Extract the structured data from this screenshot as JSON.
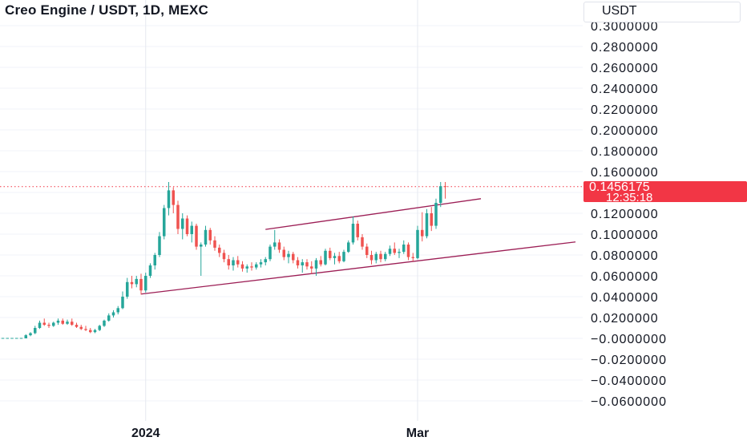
{
  "header": {
    "title": "Creo Engine / USDT, 1D, MEXC",
    "currency": "USDT"
  },
  "price_tag": {
    "price": "0.1456175",
    "countdown": "12:35:18"
  },
  "colors": {
    "up": "#26a69a",
    "down": "#ef5350",
    "trendline": "#9c1e55",
    "price_line": "#f23645",
    "grid": "#f0f3fa",
    "axis_text": "#131722"
  },
  "chart_data": {
    "type": "candlestick",
    "title": "Creo Engine / USDT, 1D, MEXC",
    "ylabel": "USDT",
    "ylim": [
      -0.07,
      0.31
    ],
    "y_ticks": [
      "0.3000000",
      "0.2800000",
      "0.2600000",
      "0.2400000",
      "0.2200000",
      "0.2000000",
      "0.1800000",
      "0.1600000",
      "0.1200000",
      "0.1000000",
      "0.0800000",
      "0.0600000",
      "0.0400000",
      "0.0200000",
      "−0.0000000",
      "−0.0200000",
      "−0.0400000",
      "−0.0600000"
    ],
    "y_tick_values": [
      0.3,
      0.28,
      0.26,
      0.24,
      0.22,
      0.2,
      0.18,
      0.16,
      0.12,
      0.1,
      0.08,
      0.06,
      0.04,
      0.02,
      0.0,
      -0.02,
      -0.04,
      -0.06
    ],
    "x_labels": [
      {
        "label": "2024",
        "bar": 31
      },
      {
        "label": "Mar",
        "bar": 90
      }
    ],
    "last_price": 0.1456175,
    "grid": true,
    "candles": [
      [
        0.0,
        0.0,
        0.0,
        0.0
      ],
      [
        0.0,
        0.0,
        0.0,
        0.0
      ],
      [
        0.0,
        0.0,
        0.0,
        0.0
      ],
      [
        0.0,
        0.0,
        0.0,
        0.0
      ],
      [
        0.0,
        0.0,
        0.0,
        0.0
      ],
      [
        0.0,
        0.004,
        0.0,
        0.003
      ],
      [
        0.003,
        0.006,
        0.002,
        0.005
      ],
      [
        0.005,
        0.012,
        0.004,
        0.01
      ],
      [
        0.01,
        0.017,
        0.009,
        0.015
      ],
      [
        0.015,
        0.019,
        0.012,
        0.013
      ],
      [
        0.013,
        0.015,
        0.01,
        0.012
      ],
      [
        0.012,
        0.016,
        0.011,
        0.015
      ],
      [
        0.015,
        0.019,
        0.013,
        0.017
      ],
      [
        0.017,
        0.019,
        0.013,
        0.014
      ],
      [
        0.014,
        0.018,
        0.013,
        0.016
      ],
      [
        0.016,
        0.019,
        0.012,
        0.013
      ],
      [
        0.013,
        0.015,
        0.01,
        0.011
      ],
      [
        0.011,
        0.013,
        0.008,
        0.009
      ],
      [
        0.009,
        0.012,
        0.007,
        0.008
      ],
      [
        0.008,
        0.01,
        0.005,
        0.006
      ],
      [
        0.006,
        0.009,
        0.005,
        0.008
      ],
      [
        0.008,
        0.013,
        0.007,
        0.012
      ],
      [
        0.012,
        0.018,
        0.011,
        0.017
      ],
      [
        0.017,
        0.024,
        0.016,
        0.022
      ],
      [
        0.022,
        0.027,
        0.02,
        0.025
      ],
      [
        0.025,
        0.031,
        0.023,
        0.029
      ],
      [
        0.029,
        0.045,
        0.028,
        0.04
      ],
      [
        0.04,
        0.058,
        0.038,
        0.054
      ],
      [
        0.054,
        0.06,
        0.048,
        0.052
      ],
      [
        0.052,
        0.06,
        0.049,
        0.057
      ],
      [
        0.057,
        0.062,
        0.042,
        0.046
      ],
      [
        0.046,
        0.063,
        0.044,
        0.06
      ],
      [
        0.06,
        0.072,
        0.058,
        0.07
      ],
      [
        0.07,
        0.082,
        0.066,
        0.08
      ],
      [
        0.08,
        0.102,
        0.078,
        0.098
      ],
      [
        0.098,
        0.128,
        0.095,
        0.125
      ],
      [
        0.125,
        0.15,
        0.118,
        0.142
      ],
      [
        0.142,
        0.145,
        0.12,
        0.128
      ],
      [
        0.128,
        0.132,
        0.1,
        0.105
      ],
      [
        0.105,
        0.12,
        0.095,
        0.115
      ],
      [
        0.115,
        0.118,
        0.098,
        0.1
      ],
      [
        0.1,
        0.112,
        0.092,
        0.108
      ],
      [
        0.108,
        0.11,
        0.085,
        0.088
      ],
      [
        0.088,
        0.092,
        0.06,
        0.09
      ],
      [
        0.09,
        0.108,
        0.088,
        0.104
      ],
      [
        0.104,
        0.106,
        0.09,
        0.094
      ],
      [
        0.094,
        0.098,
        0.084,
        0.087
      ],
      [
        0.087,
        0.09,
        0.078,
        0.082
      ],
      [
        0.082,
        0.085,
        0.073,
        0.076
      ],
      [
        0.076,
        0.08,
        0.066,
        0.07
      ],
      [
        0.07,
        0.078,
        0.065,
        0.075
      ],
      [
        0.075,
        0.079,
        0.068,
        0.071
      ],
      [
        0.071,
        0.074,
        0.064,
        0.067
      ],
      [
        0.067,
        0.071,
        0.063,
        0.069
      ],
      [
        0.069,
        0.073,
        0.065,
        0.068
      ],
      [
        0.068,
        0.073,
        0.066,
        0.071
      ],
      [
        0.071,
        0.076,
        0.068,
        0.073
      ],
      [
        0.073,
        0.078,
        0.07,
        0.076
      ],
      [
        0.076,
        0.09,
        0.074,
        0.088
      ],
      [
        0.088,
        0.104,
        0.085,
        0.092
      ],
      [
        0.092,
        0.095,
        0.082,
        0.085
      ],
      [
        0.085,
        0.088,
        0.075,
        0.078
      ],
      [
        0.078,
        0.084,
        0.072,
        0.081
      ],
      [
        0.081,
        0.083,
        0.072,
        0.075
      ],
      [
        0.075,
        0.078,
        0.067,
        0.07
      ],
      [
        0.07,
        0.076,
        0.063,
        0.073
      ],
      [
        0.073,
        0.076,
        0.066,
        0.069
      ],
      [
        0.069,
        0.074,
        0.062,
        0.067
      ],
      [
        0.067,
        0.077,
        0.06,
        0.075
      ],
      [
        0.075,
        0.079,
        0.069,
        0.071
      ],
      [
        0.071,
        0.086,
        0.07,
        0.084
      ],
      [
        0.084,
        0.087,
        0.075,
        0.077
      ],
      [
        0.077,
        0.082,
        0.071,
        0.079
      ],
      [
        0.079,
        0.083,
        0.072,
        0.074
      ],
      [
        0.074,
        0.085,
        0.073,
        0.083
      ],
      [
        0.083,
        0.094,
        0.082,
        0.092
      ],
      [
        0.092,
        0.117,
        0.09,
        0.11
      ],
      [
        0.11,
        0.113,
        0.094,
        0.097
      ],
      [
        0.097,
        0.1,
        0.085,
        0.088
      ],
      [
        0.088,
        0.091,
        0.077,
        0.08
      ],
      [
        0.08,
        0.084,
        0.071,
        0.075
      ],
      [
        0.075,
        0.083,
        0.072,
        0.081
      ],
      [
        0.081,
        0.084,
        0.073,
        0.076
      ],
      [
        0.076,
        0.083,
        0.074,
        0.081
      ],
      [
        0.081,
        0.089,
        0.079,
        0.086
      ],
      [
        0.086,
        0.092,
        0.08,
        0.082
      ],
      [
        0.082,
        0.086,
        0.077,
        0.083
      ],
      [
        0.083,
        0.094,
        0.081,
        0.09
      ],
      [
        0.09,
        0.092,
        0.075,
        0.078
      ],
      [
        0.078,
        0.082,
        0.074,
        0.077
      ],
      [
        0.077,
        0.108,
        0.076,
        0.104
      ],
      [
        0.104,
        0.121,
        0.093,
        0.098
      ],
      [
        0.098,
        0.124,
        0.096,
        0.12
      ],
      [
        0.12,
        0.126,
        0.103,
        0.108
      ],
      [
        0.108,
        0.134,
        0.105,
        0.13
      ],
      [
        0.13,
        0.15,
        0.126,
        0.146
      ],
      [
        0.146,
        0.15,
        0.134,
        0.1456175
      ]
    ]
  }
}
